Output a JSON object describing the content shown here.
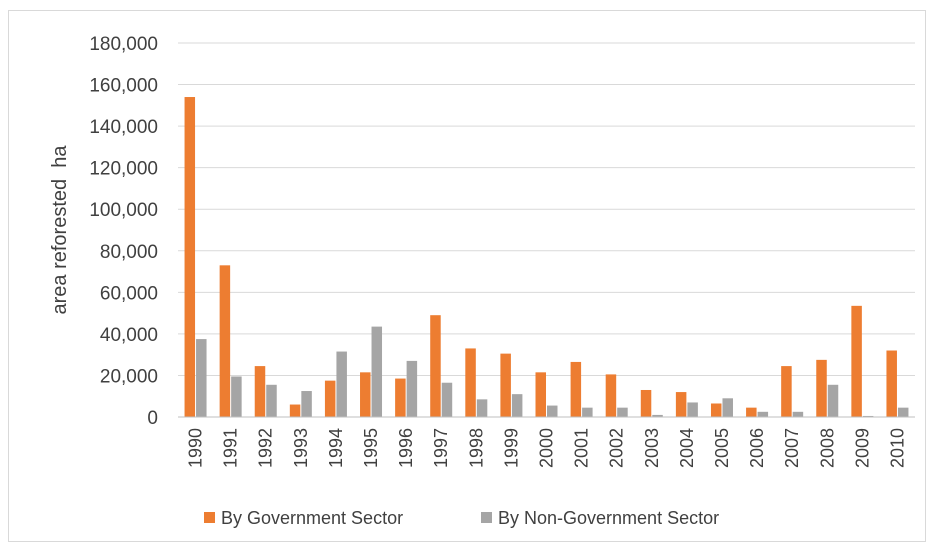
{
  "chart_data": {
    "type": "bar",
    "ylabel": "area reforested  ha",
    "xlabel": "",
    "ylim": [
      0,
      180000
    ],
    "yticks": [
      "0",
      "20,000",
      "40,000",
      "60,000",
      "80,000",
      "100,000",
      "120,000",
      "140,000",
      "160,000",
      "180,000"
    ],
    "grid": true,
    "legend_position": "bottom",
    "categories": [
      "1990",
      "1991",
      "1992",
      "1993",
      "1994",
      "1995",
      "1996",
      "1997",
      "1998",
      "1999",
      "2000",
      "2001",
      "2002",
      "2003",
      "2004",
      "2005",
      "2006",
      "2007",
      "2008",
      "2009",
      "2010"
    ],
    "series": [
      {
        "name": "By Government Sector",
        "color": "#ed7d31",
        "values": [
          154000,
          73000,
          24500,
          6000,
          17500,
          21500,
          18500,
          49000,
          33000,
          30500,
          21500,
          26500,
          20500,
          13000,
          12000,
          6500,
          4500,
          24500,
          27500,
          53500,
          32000
        ]
      },
      {
        "name": "By Non-Government Sector",
        "color": "#a5a5a5",
        "values": [
          37500,
          19500,
          15500,
          12500,
          31500,
          43500,
          27000,
          16500,
          8500,
          11000,
          5500,
          4500,
          4500,
          1000,
          7000,
          9000,
          2500,
          2500,
          15500,
          500,
          4500
        ]
      }
    ]
  },
  "grid_color": "#d9d9d9",
  "axis_color": "#bfbfbf"
}
